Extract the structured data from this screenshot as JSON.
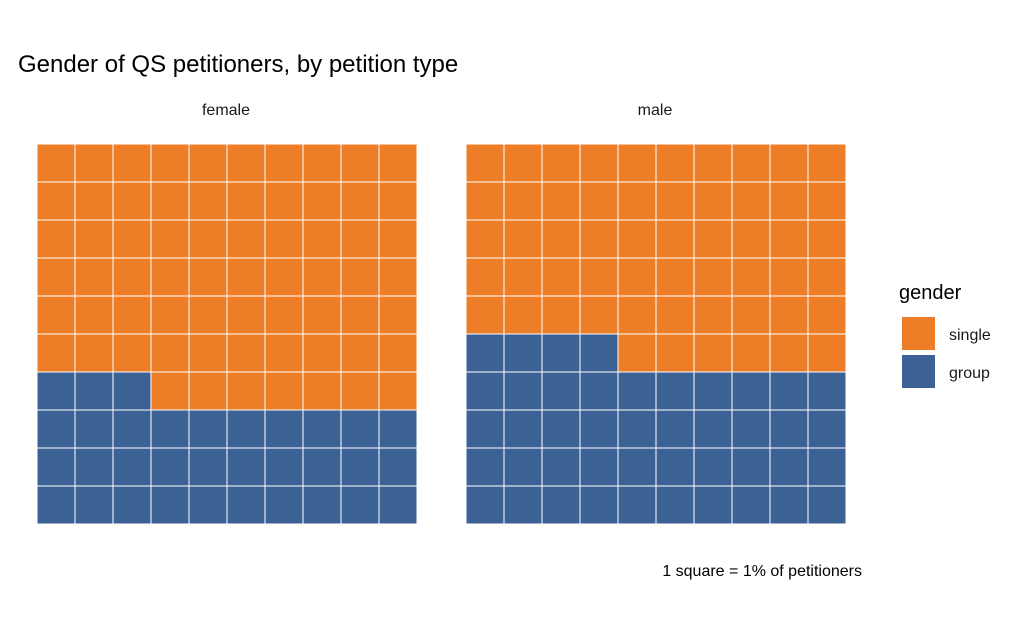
{
  "chart_data": {
    "type": "waffle",
    "title": "Gender of QS petitioners, by petition type",
    "caption": "1 square = 1% of petitioners",
    "legend": {
      "title": "gender",
      "placement": "right",
      "items": [
        {
          "label": "single",
          "color": "#ED7D27"
        },
        {
          "label": "group",
          "color": "#3C6295"
        }
      ]
    },
    "grid": {
      "rows": 10,
      "cols": 10
    },
    "panels": [
      {
        "name": "female",
        "values": {
          "single": 67,
          "group": 33
        }
      },
      {
        "name": "male",
        "values": {
          "single": 56,
          "group": 44
        }
      }
    ]
  }
}
